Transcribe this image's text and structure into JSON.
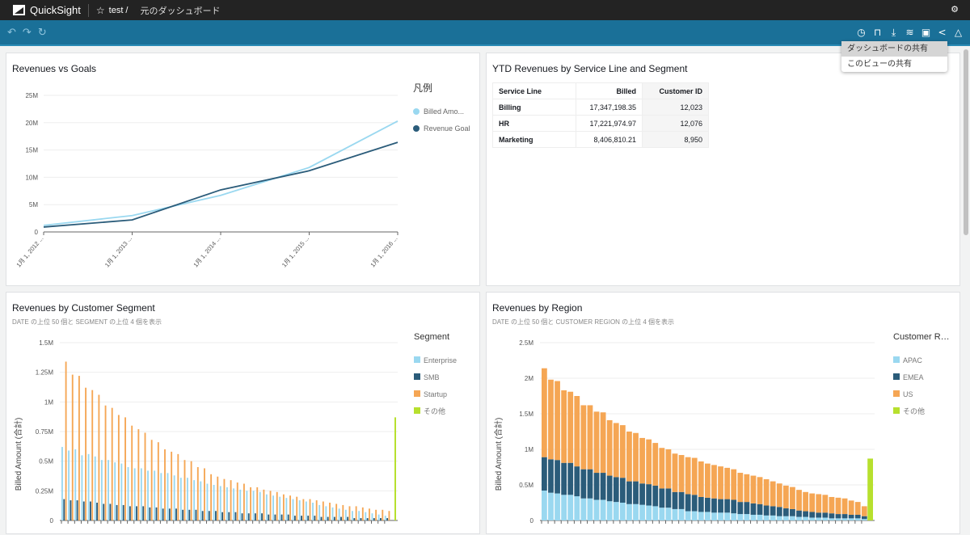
{
  "app": {
    "name": "QuickSight",
    "breadcrumb_folder": "test /",
    "dashboard_name": "元のダッシュボード"
  },
  "icons": {
    "logo": "quicksight-logo",
    "user": "user-icon",
    "undo": "undo-icon",
    "redo": "redo-icon",
    "reset": "reset-icon",
    "star": "star-icon"
  },
  "toolbar": {
    "right_icons": [
      "clock-icon",
      "bookmark-icon",
      "download-icon",
      "database-icon",
      "save-icon",
      "share-icon",
      "bell-icon"
    ]
  },
  "share_menu": {
    "items": [
      "ダッシュボードの共有",
      "このビューの共有"
    ],
    "highlighted": 0
  },
  "visuals": {
    "revenues_vs_goals": {
      "title": "Revenues vs Goals",
      "legend_title": "凡例"
    },
    "ytd_table": {
      "title": "YTD Revenues by Service Line and Segment",
      "columns": [
        "Service Line",
        "Billed",
        "Customer ID"
      ],
      "rows": [
        [
          "Billing",
          "17,347,198.35",
          "12,023"
        ],
        [
          "HR",
          "17,221,974.97",
          "12,076"
        ],
        [
          "Marketing",
          "8,406,810.21",
          "8,950"
        ]
      ]
    },
    "segment": {
      "title": "Revenues by Customer Segment",
      "subtitle": "DATE の上位 50 個と SEGMENT の上位 4 個を表示",
      "legend_title": "Segment"
    },
    "region": {
      "title": "Revenues by Region",
      "subtitle": "DATE の上位 50 個と CUSTOMER REGION の上位 4 個を表示",
      "legend_title": "Customer R…"
    }
  },
  "chart_data": [
    {
      "type": "line",
      "title": "Revenues vs Goals",
      "x": [
        "1月 1, 2012 ...",
        "1月 1, 2013 ...",
        "1月 1, 2014 ...",
        "1月 1, 2015 ...",
        "1月 1, 2016 ..."
      ],
      "series": [
        {
          "name": "Billed Amo...",
          "color": "#9ad8f0",
          "values": [
            1.2,
            3.0,
            6.7,
            11.8,
            20.3
          ]
        },
        {
          "name": "Revenue Goal",
          "color": "#2b5c7a",
          "values": [
            0.9,
            2.2,
            7.7,
            11.2,
            16.4
          ]
        }
      ],
      "yticks": [
        "0",
        "5M",
        "10M",
        "15M",
        "20M",
        "25M"
      ],
      "ylim": [
        0,
        25
      ],
      "yunit": "M",
      "legend": "right"
    },
    {
      "type": "bar",
      "title": "Revenues by Customer Segment",
      "ylabel": "Billed Amount (合計)",
      "yticks": [
        "0",
        "0.25M",
        "0.5M",
        "0.75M",
        "1M",
        "1.25M",
        "1.5M"
      ],
      "ylim": [
        0,
        1.5
      ],
      "series": [
        {
          "name": "Enterprise",
          "color": "#9ad8f0",
          "values": [
            0.62,
            0.59,
            0.6,
            0.55,
            0.56,
            0.54,
            0.51,
            0.51,
            0.49,
            0.48,
            0.45,
            0.44,
            0.44,
            0.42,
            0.42,
            0.4,
            0.4,
            0.38,
            0.36,
            0.36,
            0.34,
            0.33,
            0.31,
            0.3,
            0.29,
            0.28,
            0.27,
            0.26,
            0.25,
            0.25,
            0.24,
            0.22,
            0.21,
            0.2,
            0.19,
            0.18,
            0.17,
            0.16,
            0.15,
            0.13,
            0.12,
            0.11,
            0.1,
            0.09,
            0.08,
            0.08,
            0.07,
            0.06,
            0.05,
            0.04
          ]
        },
        {
          "name": "SMB",
          "color": "#2b5c7a",
          "values": [
            0.18,
            0.17,
            0.17,
            0.16,
            0.16,
            0.15,
            0.14,
            0.14,
            0.13,
            0.13,
            0.12,
            0.12,
            0.12,
            0.11,
            0.11,
            0.1,
            0.1,
            0.1,
            0.09,
            0.09,
            0.09,
            0.08,
            0.08,
            0.08,
            0.07,
            0.07,
            0.07,
            0.06,
            0.06,
            0.06,
            0.06,
            0.05,
            0.05,
            0.05,
            0.05,
            0.04,
            0.04,
            0.04,
            0.04,
            0.03,
            0.03,
            0.03,
            0.03,
            0.03,
            0.02,
            0.02,
            0.02,
            0.02,
            0.02,
            0.02
          ]
        },
        {
          "name": "Startup",
          "color": "#f5a654",
          "values": [
            1.34,
            1.23,
            1.22,
            1.12,
            1.1,
            1.06,
            0.97,
            0.95,
            0.89,
            0.87,
            0.8,
            0.77,
            0.74,
            0.68,
            0.66,
            0.6,
            0.58,
            0.56,
            0.51,
            0.5,
            0.45,
            0.44,
            0.39,
            0.37,
            0.35,
            0.34,
            0.32,
            0.31,
            0.28,
            0.28,
            0.26,
            0.25,
            0.24,
            0.22,
            0.21,
            0.2,
            0.18,
            0.18,
            0.17,
            0.16,
            0.15,
            0.14,
            0.13,
            0.12,
            0.12,
            0.11,
            0.1,
            0.09,
            0.09,
            0.08
          ]
        },
        {
          "name": "その他",
          "color": "#b7e02e",
          "values": [
            0.87
          ]
        }
      ],
      "legend": "right"
    },
    {
      "type": "bar",
      "stacked": true,
      "title": "Revenues by Region",
      "ylabel": "Billed Amount (合計)",
      "yticks": [
        "0",
        "0.5M",
        "1M",
        "1.5M",
        "2M",
        "2.5M"
      ],
      "ylim": [
        0,
        2.5
      ],
      "series": [
        {
          "name": "APAC",
          "color": "#9ad8f0",
          "values": [
            0.42,
            0.39,
            0.38,
            0.36,
            0.36,
            0.34,
            0.31,
            0.31,
            0.29,
            0.29,
            0.27,
            0.26,
            0.25,
            0.23,
            0.23,
            0.22,
            0.21,
            0.2,
            0.18,
            0.18,
            0.16,
            0.16,
            0.13,
            0.13,
            0.12,
            0.12,
            0.11,
            0.11,
            0.11,
            0.1,
            0.09,
            0.09,
            0.08,
            0.08,
            0.07,
            0.07,
            0.06,
            0.06,
            0.06,
            0.05,
            0.05,
            0.04,
            0.04,
            0.04,
            0.03,
            0.03,
            0.03,
            0.03,
            0.03,
            0.02
          ]
        },
        {
          "name": "EMEA",
          "color": "#2b5c7a",
          "values": [
            0.47,
            0.47,
            0.47,
            0.45,
            0.45,
            0.42,
            0.41,
            0.41,
            0.38,
            0.38,
            0.36,
            0.35,
            0.35,
            0.32,
            0.32,
            0.3,
            0.3,
            0.29,
            0.27,
            0.27,
            0.24,
            0.24,
            0.24,
            0.23,
            0.21,
            0.2,
            0.2,
            0.19,
            0.19,
            0.19,
            0.17,
            0.17,
            0.16,
            0.15,
            0.14,
            0.13,
            0.13,
            0.11,
            0.1,
            0.09,
            0.08,
            0.08,
            0.07,
            0.07,
            0.07,
            0.06,
            0.06,
            0.05,
            0.05,
            0.04
          ]
        },
        {
          "name": "US",
          "color": "#f5a654",
          "values": [
            1.25,
            1.12,
            1.11,
            1.02,
            1.0,
            0.99,
            0.9,
            0.9,
            0.86,
            0.85,
            0.78,
            0.76,
            0.74,
            0.7,
            0.68,
            0.64,
            0.63,
            0.6,
            0.57,
            0.55,
            0.54,
            0.52,
            0.52,
            0.52,
            0.5,
            0.48,
            0.47,
            0.46,
            0.44,
            0.43,
            0.41,
            0.39,
            0.39,
            0.38,
            0.37,
            0.35,
            0.33,
            0.32,
            0.31,
            0.29,
            0.27,
            0.26,
            0.26,
            0.25,
            0.23,
            0.23,
            0.22,
            0.2,
            0.18,
            0.14
          ]
        },
        {
          "name": "その他",
          "color": "#b7e02e",
          "values": [
            0.87
          ]
        }
      ],
      "legend": "right"
    }
  ]
}
